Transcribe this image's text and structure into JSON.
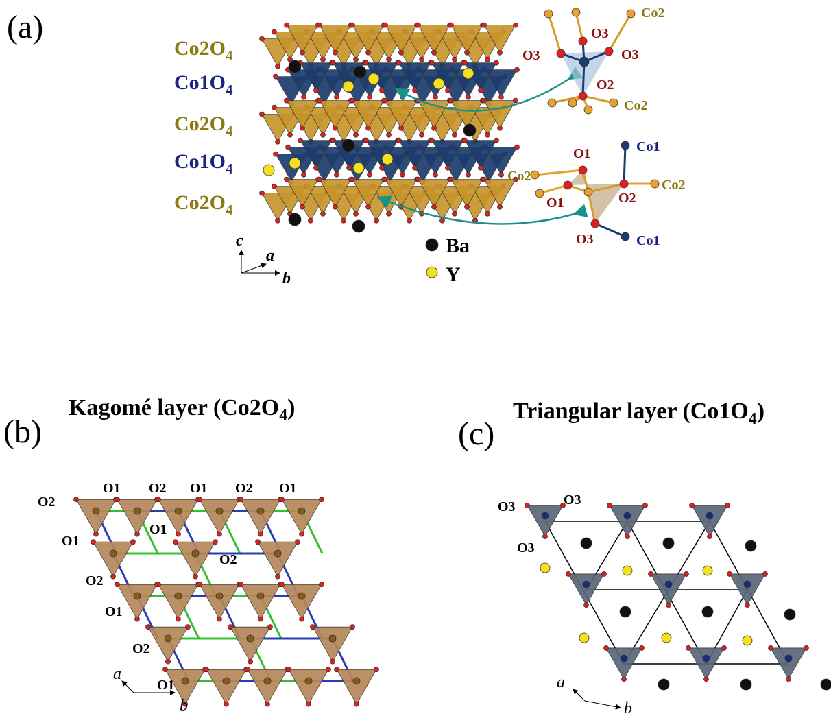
{
  "panel_a": {
    "label": "(a)",
    "layers": [
      {
        "name": "Co2O",
        "sub": "4"
      },
      {
        "name": "Co1O",
        "sub": "4"
      },
      {
        "name": "Co2O",
        "sub": "4"
      },
      {
        "name": "Co1O",
        "sub": "4"
      },
      {
        "name": "Co2O",
        "sub": "4"
      }
    ],
    "axes": {
      "c": "c",
      "a": "a",
      "b": "b"
    },
    "legend": [
      {
        "symbol": "Ba"
      },
      {
        "symbol": "Y"
      }
    ],
    "inset_top": {
      "labels": [
        "Co2",
        "O3",
        "O3",
        "O3",
        "O2",
        "Co2"
      ]
    },
    "inset_bottom": {
      "labels": [
        "Co1",
        "O1",
        "Co2",
        "O1",
        "O2",
        "Co2",
        "O3",
        "Co1"
      ]
    }
  },
  "panel_b": {
    "label": "(b)",
    "title": {
      "text": "Kagomé layer (Co2O",
      "sub": "4",
      "end": ")"
    },
    "atom_labels": [
      "O2",
      "O1",
      "O2",
      "O1",
      "O2",
      "O1",
      "O1",
      "O2",
      "O1",
      "O2",
      "O1",
      "O1",
      "O2"
    ],
    "axes": {
      "a": "a",
      "b": "b"
    }
  },
  "panel_c": {
    "label": "(c)",
    "title": {
      "text": "Triangular layer (Co1O",
      "sub": "4",
      "end": ")"
    },
    "atom_labels": [
      "O3",
      "O3",
      "O3"
    ],
    "axes": {
      "a": "a",
      "b": "b"
    }
  }
}
